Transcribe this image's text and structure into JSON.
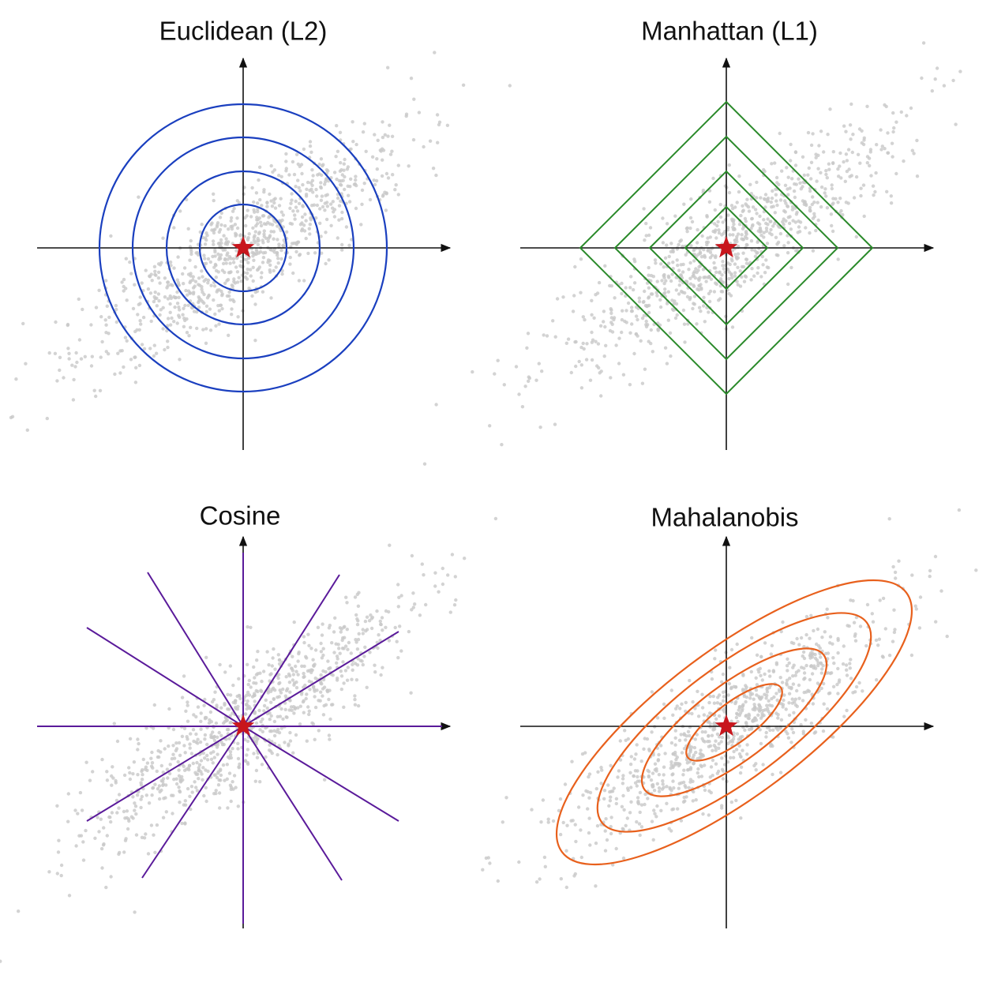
{
  "panels": [
    {
      "title": "Euclidean (L2)"
    },
    {
      "title": "Manhattan (L1)"
    },
    {
      "title": "Cosine"
    },
    {
      "title": "Mahalanobis"
    }
  ]
}
